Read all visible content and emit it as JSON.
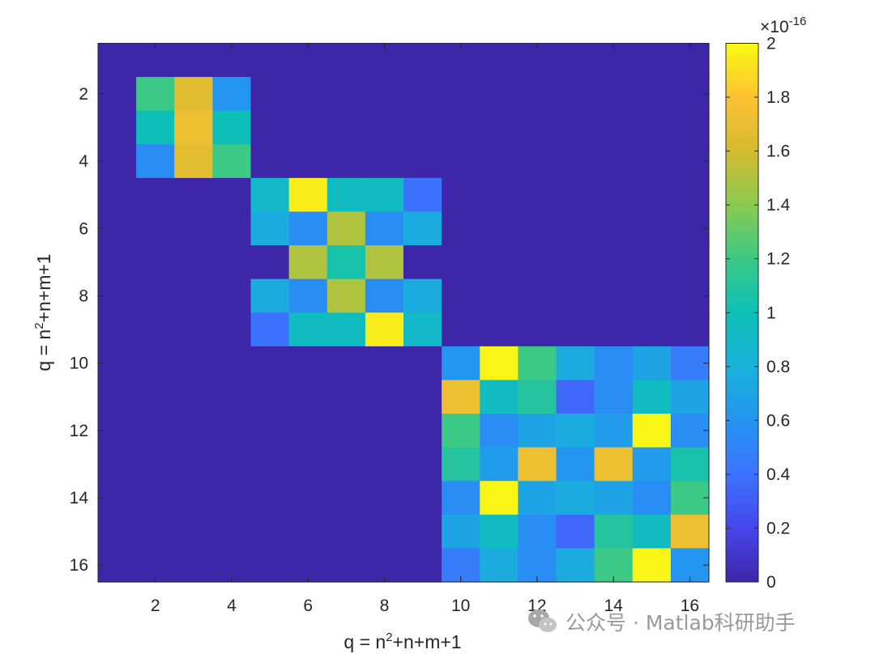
{
  "chart_data": {
    "type": "heatmap",
    "xlabel": "q = n²+n+m+1",
    "ylabel": "q = n²+n+m+1",
    "x_range": [
      0.5,
      16.5
    ],
    "y_range": [
      0.5,
      16.5
    ],
    "x_ticks": [
      2,
      4,
      6,
      8,
      10,
      12,
      14,
      16
    ],
    "y_ticks": [
      2,
      4,
      6,
      8,
      10,
      12,
      14,
      16
    ],
    "y_direction": "reversed",
    "color_range": [
      0,
      2
    ],
    "colorbar_ticks": [
      0,
      0.2,
      0.4,
      0.6,
      0.8,
      1,
      1.2,
      1.4,
      1.6,
      1.8,
      2
    ],
    "colorbar_exponent": "×10⁻¹⁶",
    "colormap": "parula",
    "values": [
      [
        0,
        0,
        0,
        0,
        0,
        0,
        0,
        0,
        0,
        0,
        0,
        0,
        0,
        0,
        0,
        0
      ],
      [
        0,
        1.2,
        1.67,
        0.6,
        0,
        0,
        0,
        0,
        0,
        0,
        0,
        0,
        0,
        0,
        0,
        0
      ],
      [
        0,
        1.0,
        1.72,
        1.0,
        0,
        0,
        0,
        0,
        0,
        0,
        0,
        0,
        0,
        0,
        0,
        0
      ],
      [
        0,
        0.55,
        1.68,
        1.2,
        0,
        0,
        0,
        0,
        0,
        0,
        0,
        0,
        0,
        0,
        0,
        0
      ],
      [
        0,
        0,
        0,
        0,
        0.9,
        1.95,
        0.95,
        0.95,
        0.4,
        0,
        0,
        0,
        0,
        0,
        0,
        0
      ],
      [
        0,
        0,
        0,
        0,
        0.75,
        0.55,
        1.5,
        0.55,
        0.75,
        0,
        0,
        0,
        0,
        0,
        0,
        0
      ],
      [
        0,
        0,
        0,
        0,
        0,
        1.5,
        1.05,
        1.5,
        0,
        0,
        0,
        0,
        0,
        0,
        0,
        0
      ],
      [
        0,
        0,
        0,
        0,
        0.75,
        0.55,
        1.5,
        0.55,
        0.75,
        0,
        0,
        0,
        0,
        0,
        0,
        0
      ],
      [
        0,
        0,
        0,
        0,
        0.4,
        0.95,
        0.95,
        1.95,
        0.9,
        0,
        0,
        0,
        0,
        0,
        0,
        0
      ],
      [
        0,
        0,
        0,
        0,
        0,
        0,
        0,
        0,
        0,
        0.6,
        1.98,
        1.2,
        0.75,
        0.55,
        0.7,
        0.45
      ],
      [
        0,
        0,
        0,
        0,
        0,
        0,
        0,
        0,
        0,
        1.72,
        0.95,
        1.1,
        0.35,
        0.55,
        0.95,
        0.7
      ],
      [
        0,
        0,
        0,
        0,
        0,
        0,
        0,
        0,
        0,
        1.2,
        0.55,
        0.7,
        0.75,
        0.65,
        1.98,
        0.55
      ],
      [
        0,
        0,
        0,
        0,
        0,
        0,
        0,
        0,
        0,
        1.1,
        0.65,
        1.72,
        0.6,
        1.72,
        0.65,
        1.05
      ],
      [
        0,
        0,
        0,
        0,
        0,
        0,
        0,
        0,
        0,
        0.55,
        1.98,
        0.7,
        0.75,
        0.7,
        0.55,
        1.2
      ],
      [
        0,
        0,
        0,
        0,
        0,
        0,
        0,
        0,
        0,
        0.7,
        0.95,
        0.55,
        0.35,
        1.1,
        0.95,
        1.72
      ],
      [
        0,
        0,
        0,
        0,
        0,
        0,
        0,
        0,
        0,
        0.45,
        0.75,
        0.55,
        0.75,
        1.2,
        1.98,
        0.6
      ]
    ]
  },
  "watermark": {
    "icon": "wechat-icon",
    "text": "公众号 · Matlab科研助手"
  }
}
